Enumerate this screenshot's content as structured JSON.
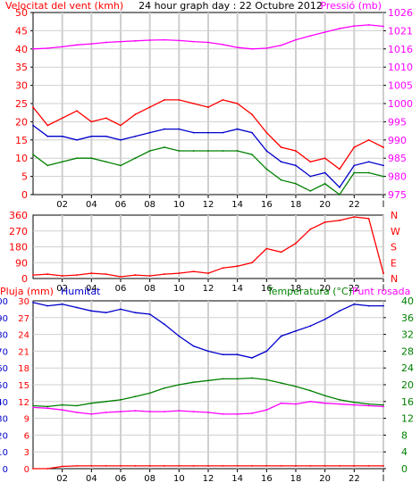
{
  "title": "24 hour graph day : 22 Octubre 2012",
  "chart_data": [
    {
      "type": "line",
      "panel": "wind-pressure",
      "y1label": "Velocitat del vent (kmh)",
      "y2label": "Pressió (mb)",
      "y1lim": [
        0,
        50
      ],
      "y2lim": [
        975,
        1025
      ],
      "y1_ticks": [
        0,
        5,
        10,
        15,
        20,
        25,
        30,
        35,
        40,
        45,
        50
      ],
      "y2_ticks": [
        975,
        980,
        985,
        990,
        995,
        1000,
        1005,
        1010,
        1016,
        1021,
        1026
      ],
      "x_ticks": [
        "02",
        "04",
        "06",
        "08",
        "10",
        "12",
        "14",
        "16",
        "18",
        "20",
        "22",
        "l"
      ],
      "x": [
        0,
        1,
        2,
        3,
        4,
        5,
        6,
        7,
        8,
        9,
        10,
        11,
        12,
        13,
        14,
        15,
        16,
        17,
        18,
        19,
        20,
        21,
        22,
        23,
        24
      ],
      "grid": true,
      "series": [
        {
          "name": "gust",
          "axis": "y1",
          "color": "#ff0000",
          "values": [
            24,
            19,
            21,
            23,
            20,
            21,
            19,
            22,
            24,
            26,
            26,
            25,
            24,
            26,
            25,
            22,
            17,
            13,
            12,
            9,
            10,
            7,
            13,
            15,
            13
          ]
        },
        {
          "name": "average",
          "axis": "y1",
          "color": "#0000cc",
          "values": [
            19,
            16,
            16,
            15,
            16,
            16,
            15,
            16,
            17,
            18,
            18,
            17,
            17,
            17,
            18,
            17,
            12,
            9,
            8,
            5,
            6,
            2,
            8,
            9,
            8
          ]
        },
        {
          "name": "minimum",
          "axis": "y1",
          "color": "#008000",
          "values": [
            11,
            8,
            9,
            10,
            10,
            9,
            8,
            10,
            12,
            13,
            12,
            12,
            12,
            12,
            12,
            11,
            7,
            4,
            3,
            1,
            3,
            0,
            6,
            6,
            5
          ]
        },
        {
          "name": "pressure",
          "axis": "y2",
          "color": "#ff00ff",
          "values": [
            1015,
            1015.2,
            1015.6,
            1016.1,
            1016.4,
            1016.8,
            1017.0,
            1017.2,
            1017.4,
            1017.5,
            1017.3,
            1017.0,
            1016.8,
            1016.2,
            1015.4,
            1015.0,
            1015.2,
            1016.0,
            1017.5,
            1018.6,
            1019.6,
            1020.6,
            1021.3,
            1021.6,
            1021.2
          ]
        }
      ]
    },
    {
      "type": "line",
      "panel": "wind-direction",
      "ylim": [
        0,
        360
      ],
      "y_ticks": [
        0,
        90,
        180,
        270,
        360
      ],
      "compass_labels": [
        "N",
        "E",
        "S",
        "W",
        "N"
      ],
      "x_ticks": [
        "02",
        "04",
        "06",
        "08",
        "10",
        "12",
        "14",
        "16",
        "18",
        "20",
        "22",
        "l"
      ],
      "x": [
        0,
        1,
        2,
        3,
        4,
        5,
        6,
        7,
        8,
        9,
        10,
        11,
        12,
        13,
        14,
        15,
        16,
        17,
        18,
        19,
        20,
        21,
        22,
        23,
        24
      ],
      "grid": true,
      "series": [
        {
          "name": "direction",
          "color": "#ff0000",
          "values": [
            20,
            25,
            15,
            20,
            30,
            25,
            10,
            20,
            15,
            25,
            30,
            40,
            30,
            60,
            70,
            90,
            170,
            150,
            200,
            280,
            320,
            330,
            350,
            340,
            30
          ]
        }
      ]
    },
    {
      "type": "line",
      "panel": "rain-humidity-temperature",
      "y1label": "Pluja (mm)",
      "humidity_label": "Humitat",
      "y2label": "Temperatura (°C)",
      "dewpoint_label": "Punt rosada",
      "y1_ticks": [
        0,
        3,
        6,
        9,
        12,
        15,
        18,
        21,
        24,
        27,
        30
      ],
      "humidity_ticks": [
        0,
        10,
        20,
        30,
        40,
        50,
        60,
        70,
        80,
        90,
        100
      ],
      "y2_ticks": [
        0,
        4,
        8,
        12,
        16,
        20,
        24,
        28,
        32,
        36,
        40
      ],
      "x_ticks": [
        "02",
        "04",
        "06",
        "08",
        "10",
        "12",
        "14",
        "16",
        "18",
        "20",
        "22",
        "l"
      ],
      "x": [
        0,
        1,
        2,
        3,
        4,
        5,
        6,
        7,
        8,
        9,
        10,
        11,
        12,
        13,
        14,
        15,
        16,
        17,
        18,
        19,
        20,
        21,
        22,
        23,
        24
      ],
      "grid": true,
      "series": [
        {
          "name": "rain",
          "axis": "rain",
          "color": "#ff0000",
          "values": [
            0,
            0,
            0.4,
            0.5,
            0.5,
            0.5,
            0.5,
            0.5,
            0.5,
            0.5,
            0.5,
            0.5,
            0.5,
            0.5,
            0.5,
            0.5,
            0.5,
            0.5,
            0.5,
            0.5,
            0.5,
            0.5,
            0.5,
            0.5,
            0.5
          ]
        },
        {
          "name": "humidity",
          "axis": "humidity",
          "color": "#0000cc",
          "values": [
            99,
            97,
            98,
            96,
            94,
            93,
            95,
            93,
            92,
            86,
            79,
            73,
            70,
            68,
            68,
            66,
            70,
            79,
            82,
            85,
            89,
            94,
            98,
            97,
            97
          ]
        },
        {
          "name": "temperature",
          "axis": "temp",
          "color": "#008000",
          "values": [
            15.0,
            14.8,
            15.2,
            15.0,
            15.6,
            16.0,
            16.4,
            17.2,
            18.0,
            19.2,
            20.0,
            20.6,
            21.0,
            21.4,
            21.4,
            21.6,
            21.2,
            20.4,
            19.6,
            18.6,
            17.4,
            16.4,
            15.8,
            15.4,
            15.2
          ]
        },
        {
          "name": "dewpoint",
          "axis": "temp",
          "color": "#ff00ff",
          "values": [
            14.6,
            14.4,
            14.0,
            13.4,
            13.0,
            13.4,
            13.6,
            13.8,
            13.6,
            13.6,
            13.8,
            13.6,
            13.4,
            13.0,
            13.0,
            13.2,
            14.0,
            15.6,
            15.4,
            16.0,
            15.6,
            15.4,
            15.2,
            15.0,
            14.8
          ]
        }
      ]
    }
  ]
}
